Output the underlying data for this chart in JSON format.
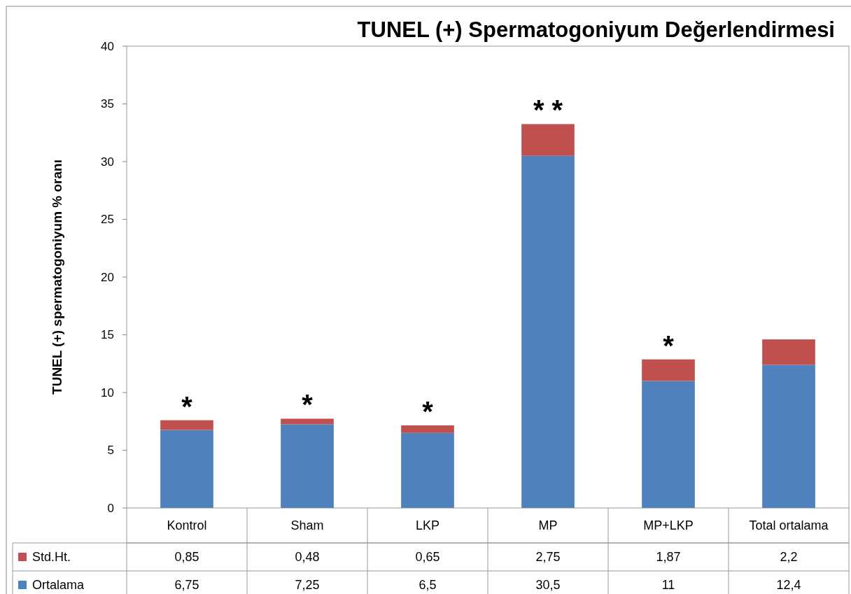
{
  "chart_data": {
    "type": "bar",
    "title": "TUNEL (+) Spermatogoniyum Değerlendirmesi",
    "ylabel": "TUNEL (+)  spermatogoniyum % oranı",
    "categories": [
      "Kontrol",
      "Sham",
      "LKP",
      "MP",
      "MP+LKP",
      "Total ortalama"
    ],
    "stacked": true,
    "series": [
      {
        "name": "Ortalama",
        "color": "#4f81bd",
        "values": [
          6.75,
          7.25,
          6.5,
          30.5,
          11,
          12.4
        ],
        "value_labels": [
          "6,75",
          "7,25",
          "6,5",
          "30,5",
          "11",
          "12,4"
        ]
      },
      {
        "name": "Std.Ht.",
        "color": "#c0504d",
        "values": [
          0.85,
          0.48,
          0.65,
          2.75,
          1.87,
          2.2
        ],
        "value_labels": [
          "0,85",
          "0,48",
          "0,65",
          "2,75",
          "1,87",
          "2,2"
        ]
      }
    ],
    "ylim": [
      0,
      40
    ],
    "yticks": [
      0,
      5,
      10,
      15,
      20,
      25,
      30,
      35,
      40
    ],
    "grid": false,
    "legend": "bottom",
    "annotations": [
      {
        "text": "*",
        "x": "Kontrol",
        "y": 7.6
      },
      {
        "text": "*",
        "x": "Sham",
        "y": 7.73
      },
      {
        "text": "*",
        "x": "LKP",
        "y": 7.15
      },
      {
        "text": "* *",
        "x": "MP",
        "y": 33.25
      },
      {
        "text": "*",
        "x": "MP+LKP",
        "y": 12.87
      }
    ]
  }
}
